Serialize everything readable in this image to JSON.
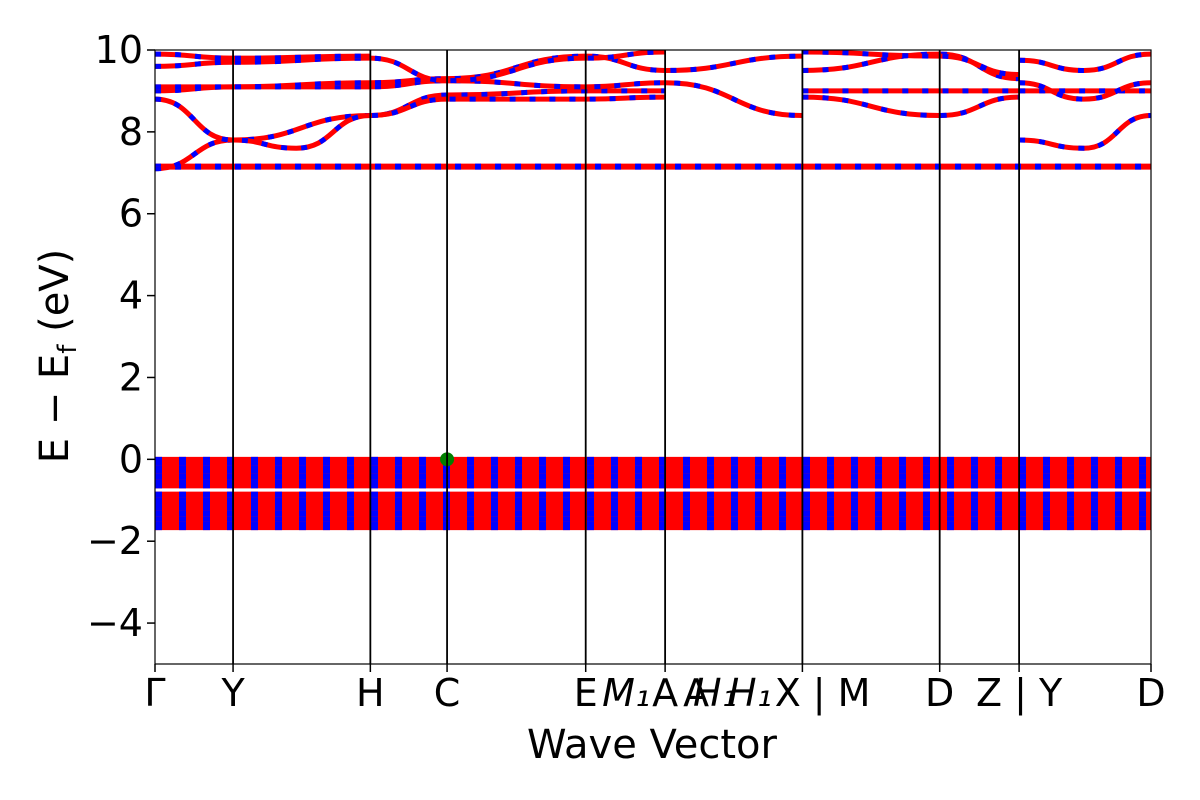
{
  "chart_data": {
    "type": "line",
    "title": "",
    "xlabel": "Wave Vector",
    "ylabel": "E − E_f (eV)",
    "ylabel_main": "E − E",
    "ylabel_sub": "f",
    "ylabel_unit": " (eV)",
    "ylim": [
      -5,
      10
    ],
    "yticks": [
      -4,
      -2,
      0,
      2,
      4,
      6,
      8,
      10
    ],
    "ytick_labels": [
      "−4",
      "−2",
      "0",
      "2",
      "4",
      "6",
      "8",
      "10"
    ],
    "grid": false,
    "legend": "none",
    "colors": {
      "spin_up": "#ff0000",
      "spin_down": "#0000ff",
      "vbm_marker": "#008000",
      "kline": "#000000"
    },
    "kpath_positions": [
      0,
      0.58,
      1.6,
      2.17,
      3.2,
      3.79,
      4.81,
      5.83,
      6.42,
      7.4
    ],
    "kpoints": [
      {
        "label": "Γ",
        "x": 0
      },
      {
        "label": "Y",
        "x": 0.58
      },
      {
        "label": "H",
        "x": 1.6
      },
      {
        "label": "C",
        "x": 2.17
      },
      {
        "label": "E",
        "x": 3.2
      },
      {
        "label": "M₁",
        "x": 3.5,
        "italic": true
      },
      {
        "label": "A",
        "x": 3.79
      },
      {
        "label": "H₁",
        "x": 4.16,
        "italic": true
      },
      {
        "label": "H₁",
        "x": 4.42,
        "italic": true
      },
      {
        "label": "A",
        "x": 4.02
      },
      {
        "label": "X | M",
        "x": 4.96
      },
      {
        "label": "D",
        "x": 5.83
      },
      {
        "label": "Z | Y",
        "x": 6.42
      },
      {
        "label": "D",
        "x": 7.4
      }
    ],
    "valence_bands": [
      -0.05,
      -0.25,
      -0.45,
      -0.6,
      -0.9,
      -1.05,
      -1.2,
      -1.35,
      -1.5,
      -1.62
    ],
    "conduction_flat_band": 7.15,
    "conduction_bands": [
      {
        "x": [
          0,
          0.58,
          1.6,
          2.17,
          3.2,
          3.79
        ],
        "y": [
          7.1,
          7.8,
          8.4,
          8.9,
          9.0,
          9.0
        ]
      },
      {
        "x": [
          0,
          0.58,
          1.05,
          1.6,
          2.17,
          3.2,
          3.79
        ],
        "y": [
          8.8,
          7.8,
          7.6,
          8.4,
          8.8,
          8.8,
          8.85
        ]
      },
      {
        "x": [
          0,
          0.58,
          1.6,
          2.17,
          3.2,
          3.79,
          4.81
        ],
        "y": [
          9.0,
          9.1,
          9.1,
          9.25,
          9.1,
          9.2,
          8.4
        ]
      },
      {
        "x": [
          0,
          0.58,
          1.6,
          2.17,
          3.2,
          3.79,
          4.81
        ],
        "y": [
          9.1,
          9.1,
          9.2,
          9.3,
          9.85,
          9.5,
          9.85
        ]
      },
      {
        "x": [
          0,
          0.58,
          1.6,
          2.17,
          3.2,
          3.79
        ],
        "y": [
          9.6,
          9.7,
          9.8,
          9.25,
          9.8,
          9.95
        ]
      },
      {
        "x": [
          0,
          0.58,
          1.6
        ],
        "y": [
          9.9,
          9.8,
          9.85
        ]
      },
      {
        "x": [
          4.81,
          5.83,
          6.42
        ],
        "y": [
          8.85,
          8.4,
          8.85
        ]
      },
      {
        "x": [
          4.81,
          5.83,
          6.42
        ],
        "y": [
          9.0,
          9.0,
          9.0
        ]
      },
      {
        "x": [
          4.81,
          5.83,
          6.42
        ],
        "y": [
          9.5,
          9.9,
          9.3
        ]
      },
      {
        "x": [
          4.81,
          5.83,
          6.42
        ],
        "y": [
          9.95,
          9.85,
          9.4
        ]
      },
      {
        "x": [
          6.42,
          6.9,
          7.4
        ],
        "y": [
          7.8,
          7.6,
          8.4
        ]
      },
      {
        "x": [
          6.42,
          6.9,
          7.4
        ],
        "y": [
          9.75,
          9.5,
          9.9
        ]
      },
      {
        "x": [
          6.42,
          7.4
        ],
        "y": [
          9.0,
          9.0
        ]
      },
      {
        "x": [
          6.42,
          6.9,
          7.4
        ],
        "y": [
          9.2,
          8.8,
          9.2
        ]
      }
    ],
    "vbm_point": {
      "x": 2.17,
      "y": 0.0
    }
  }
}
